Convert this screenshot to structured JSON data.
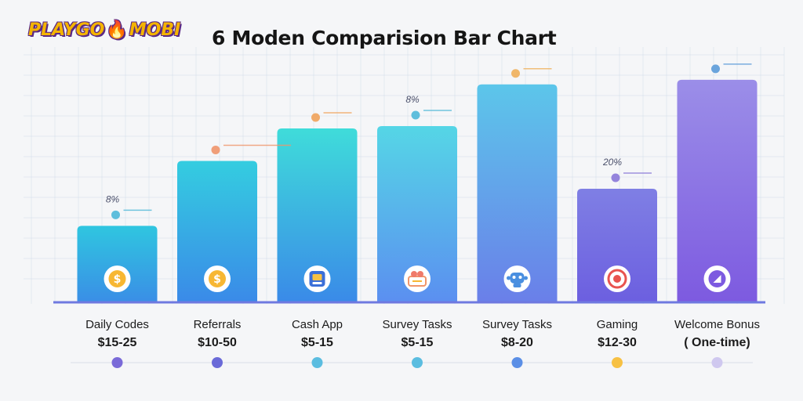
{
  "header": {
    "logo_left": "PLAYGO",
    "logo_right": "MOBI",
    "title": "6  Moden Comparision Bar Chart"
  },
  "chart_data": {
    "type": "bar",
    "title": "6  Moden Comparision Bar Chart",
    "xlabel": "",
    "ylabel": "",
    "ylim": [
      0,
      100
    ],
    "grid": true,
    "categories": [
      [
        "Daily Codes",
        "$15-25"
      ],
      [
        "Referrals",
        "$10-50"
      ],
      [
        "Cash App",
        "$5-15"
      ],
      [
        "Survey Tasks",
        "$5-15"
      ],
      [
        "Survey Tasks",
        "$8-20"
      ],
      [
        "Gaming",
        "$12-30"
      ],
      [
        "Welcome Bonus",
        "( One-time)"
      ]
    ],
    "values": [
      33,
      61,
      75,
      76,
      94,
      49,
      96
    ],
    "annotations": [
      {
        "bar": 0,
        "text": "8%"
      },
      {
        "bar": 3,
        "text": "8%"
      },
      {
        "bar": 5,
        "text": "20%"
      }
    ],
    "icons": [
      "dollar-coin-icon",
      "dollar-coin-icon",
      "cash-app-icon",
      "survey-icon",
      "survey-robot-icon",
      "target-icon",
      "bonus-icon"
    ],
    "colors": {
      "bar_top": [
        "#2fc6e0",
        "#34cde0",
        "#3fdcda",
        "#55d6e6",
        "#5cc6ea",
        "#7f7fe4",
        "#9b8ee8"
      ],
      "bar_bottom": [
        "#3a8ee6",
        "#3a8ae8",
        "#3a8ae8",
        "#5b8ff0",
        "#6a7fe9",
        "#6c5fe0",
        "#7d5ae0"
      ],
      "dots": [
        "#7a6ad8",
        "#6a6ad8",
        "#5bbde0",
        "#5bbde0",
        "#5b8fe6",
        "#f7c144",
        "#cfc8ef"
      ],
      "markers": [
        "#4fb8d8",
        "#f0956a",
        "#f0a35a",
        "#4fb8d8",
        "#f0b05a",
        "#8a78d8",
        "#5b9bd8"
      ],
      "axis": "#6f79e0",
      "grid": "#c9d4e4"
    }
  }
}
